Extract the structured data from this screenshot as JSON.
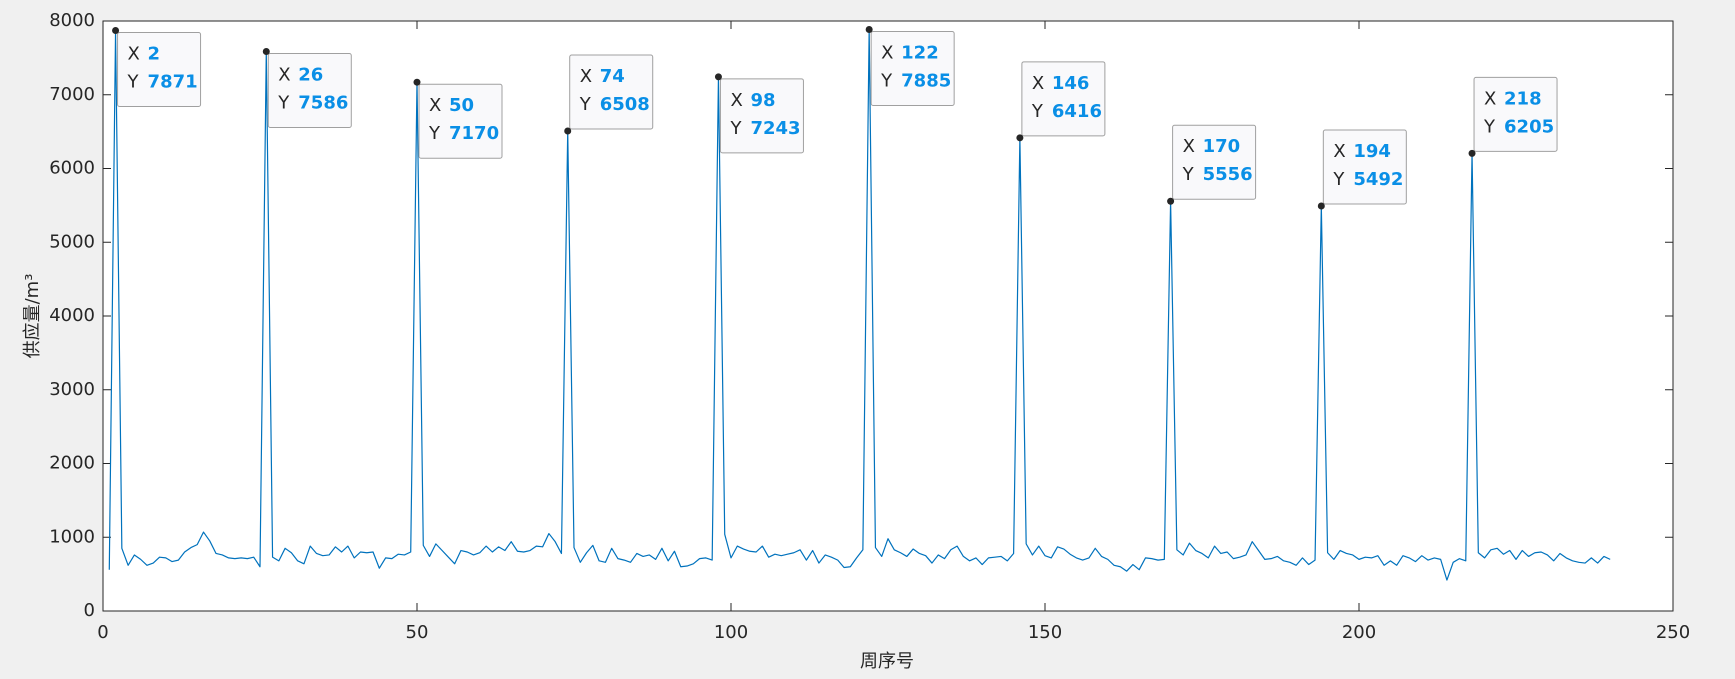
{
  "chart_data": {
    "type": "line",
    "xlabel": "周序号",
    "ylabel": "供应量/m³",
    "xlim": [
      0,
      250
    ],
    "xticks": [
      0,
      50,
      100,
      150,
      200,
      250
    ],
    "ylim": [
      0,
      8000
    ],
    "yticks": [
      0,
      1000,
      2000,
      3000,
      4000,
      5000,
      6000,
      7000,
      8000
    ],
    "grid": false,
    "x": [
      1,
      2,
      3,
      4,
      5,
      6,
      7,
      8,
      9,
      10,
      11,
      12,
      13,
      14,
      15,
      16,
      17,
      18,
      19,
      20,
      21,
      22,
      23,
      24,
      25,
      26,
      27,
      28,
      29,
      30,
      31,
      32,
      33,
      34,
      35,
      36,
      37,
      38,
      39,
      40,
      41,
      42,
      43,
      44,
      45,
      46,
      47,
      48,
      49,
      50,
      51,
      52,
      53,
      54,
      55,
      56,
      57,
      58,
      59,
      60,
      61,
      62,
      63,
      64,
      65,
      66,
      67,
      68,
      69,
      70,
      71,
      72,
      73,
      74,
      75,
      76,
      77,
      78,
      79,
      80,
      81,
      82,
      83,
      84,
      85,
      86,
      87,
      88,
      89,
      90,
      91,
      92,
      93,
      94,
      95,
      96,
      97,
      98,
      99,
      100,
      101,
      102,
      103,
      104,
      105,
      106,
      107,
      108,
      109,
      110,
      111,
      112,
      113,
      114,
      115,
      116,
      117,
      118,
      119,
      120,
      121,
      122,
      123,
      124,
      125,
      126,
      127,
      128,
      129,
      130,
      131,
      132,
      133,
      134,
      135,
      136,
      137,
      138,
      139,
      140,
      141,
      142,
      143,
      144,
      145,
      146,
      147,
      148,
      149,
      150,
      151,
      152,
      153,
      154,
      155,
      156,
      157,
      158,
      159,
      160,
      161,
      162,
      163,
      164,
      165,
      166,
      167,
      168,
      169,
      170,
      171,
      172,
      173,
      174,
      175,
      176,
      177,
      178,
      179,
      180,
      181,
      182,
      183,
      184,
      185,
      186,
      187,
      188,
      189,
      190,
      191,
      192,
      193,
      194,
      195,
      196,
      197,
      198,
      199,
      200,
      201,
      202,
      203,
      204,
      205,
      206,
      207,
      208,
      209,
      210,
      211,
      212,
      213,
      214,
      215,
      216,
      217,
      218,
      219,
      220,
      221,
      222,
      223,
      224,
      225,
      226,
      227,
      228,
      229,
      230,
      231,
      232,
      233,
      234,
      235,
      236,
      237,
      238,
      239,
      240
    ],
    "series": [
      {
        "color": "#0072bd",
        "values": [
          560,
          7871,
          850,
          620,
          760,
          700,
          620,
          650,
          730,
          720,
          670,
          690,
          800,
          860,
          900,
          1070,
          950,
          780,
          760,
          720,
          710,
          720,
          710,
          730,
          600,
          7586,
          730,
          680,
          850,
          790,
          680,
          640,
          880,
          780,
          750,
          760,
          870,
          800,
          880,
          720,
          800,
          790,
          800,
          580,
          720,
          710,
          770,
          760,
          800,
          7170,
          890,
          740,
          910,
          820,
          730,
          640,
          820,
          800,
          760,
          790,
          880,
          800,
          870,
          820,
          940,
          810,
          800,
          820,
          880,
          870,
          1050,
          940,
          780,
          6508,
          860,
          660,
          790,
          890,
          680,
          660,
          850,
          710,
          690,
          660,
          780,
          740,
          760,
          700,
          850,
          680,
          810,
          600,
          610,
          640,
          710,
          720,
          690,
          7243,
          1040,
          720,
          880,
          840,
          810,
          800,
          880,
          730,
          770,
          750,
          770,
          790,
          830,
          690,
          820,
          650,
          760,
          730,
          690,
          590,
          600,
          720,
          830,
          7885,
          860,
          740,
          980,
          830,
          790,
          740,
          840,
          780,
          750,
          650,
          760,
          710,
          830,
          880,
          740,
          680,
          720,
          630,
          720,
          730,
          740,
          680,
          780,
          6416,
          910,
          760,
          880,
          750,
          720,
          870,
          840,
          770,
          720,
          690,
          720,
          850,
          740,
          700,
          620,
          600,
          540,
          630,
          560,
          720,
          710,
          690,
          700,
          5556,
          830,
          760,
          920,
          820,
          780,
          720,
          880,
          780,
          800,
          710,
          730,
          760,
          940,
          820,
          700,
          710,
          740,
          680,
          660,
          620,
          720,
          630,
          690,
          5492,
          790,
          700,
          820,
          780,
          760,
          700,
          730,
          720,
          750,
          620,
          680,
          620,
          750,
          720,
          670,
          750,
          690,
          720,
          700,
          420,
          660,
          710,
          680,
          6205,
          790,
          720,
          830,
          850,
          770,
          820,
          700,
          820,
          740,
          790,
          800,
          760,
          680,
          780,
          720,
          680,
          660,
          650,
          720,
          650,
          740,
          700
        ]
      }
    ],
    "datatip_labels": [
      "X",
      "Y"
    ],
    "datatips": [
      {
        "x": 2,
        "y": 7871
      },
      {
        "x": 26,
        "y": 7586
      },
      {
        "x": 50,
        "y": 7170
      },
      {
        "x": 74,
        "y": 6508
      },
      {
        "x": 98,
        "y": 7243
      },
      {
        "x": 122,
        "y": 7885
      },
      {
        "x": 146,
        "y": 6416
      },
      {
        "x": 170,
        "y": 5556
      },
      {
        "x": 194,
        "y": 5492
      },
      {
        "x": 218,
        "y": 6205
      }
    ]
  }
}
